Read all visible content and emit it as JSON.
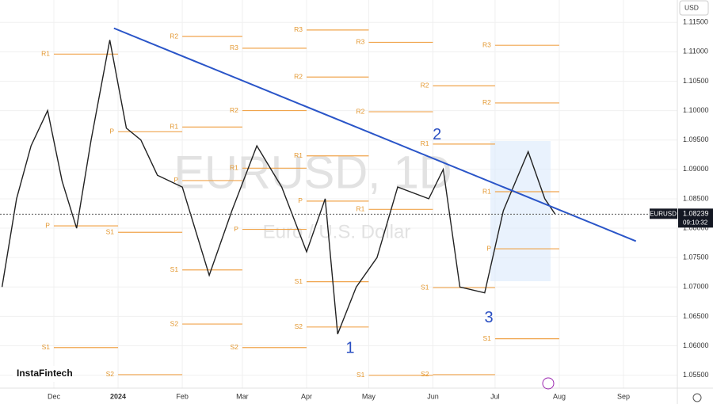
{
  "chart_data": {
    "type": "line",
    "symbol": "EURUSD",
    "watermark": "EURUSD, 1D",
    "subtitle": "Euro / U.S. Dollar",
    "currency": "USD",
    "brand": "InstaFintech",
    "last": 1.08239,
    "countdown": "09:10:32",
    "color": "#222222",
    "xlim": [
      "2023-11-05",
      "2024-09-27"
    ],
    "ylim": [
      1.0528,
      1.1188
    ],
    "xticks": [
      {
        "value": "2023-12-01",
        "label": "Dec"
      },
      {
        "value": "2024-01-01",
        "label": "2024"
      },
      {
        "value": "2024-02-01",
        "label": "Feb"
      },
      {
        "value": "2024-03-01",
        "label": "Mar"
      },
      {
        "value": "2024-04-01",
        "label": "Apr"
      },
      {
        "value": "2024-05-01",
        "label": "May"
      },
      {
        "value": "2024-06-01",
        "label": "Jun"
      },
      {
        "value": "2024-07-01",
        "label": "Jul"
      },
      {
        "value": "2024-08-01",
        "label": "Aug"
      },
      {
        "value": "2024-09-01",
        "label": "Sep"
      }
    ],
    "yticks": [
      {
        "value": 1.055,
        "label": "1.05500"
      },
      {
        "value": 1.06,
        "label": "1.06000"
      },
      {
        "value": 1.065,
        "label": "1.06500"
      },
      {
        "value": 1.07,
        "label": "1.07000"
      },
      {
        "value": 1.075,
        "label": "1.07500"
      },
      {
        "value": 1.08,
        "label": "1.08000"
      },
      {
        "value": 1.085,
        "label": "1.08500"
      },
      {
        "value": 1.09,
        "label": "1.09000"
      },
      {
        "value": 1.095,
        "label": "1.09500"
      },
      {
        "value": 1.1,
        "label": "1.10000"
      },
      {
        "value": 1.105,
        "label": "1.10500"
      },
      {
        "value": 1.11,
        "label": "1.11000"
      },
      {
        "value": 1.115,
        "label": "1.11500"
      }
    ],
    "grid": true,
    "x": [
      "2023-11-06",
      "2023-11-13",
      "2023-11-20",
      "2023-11-28",
      "2023-12-05",
      "2023-12-12",
      "2023-12-19",
      "2023-12-28",
      "2024-01-05",
      "2024-01-12",
      "2024-01-20",
      "2024-02-01",
      "2024-02-14",
      "2024-02-25",
      "2024-03-08",
      "2024-03-20",
      "2024-04-01",
      "2024-04-10",
      "2024-04-16",
      "2024-04-25",
      "2024-05-05",
      "2024-05-15",
      "2024-05-30",
      "2024-06-06",
      "2024-06-14",
      "2024-06-26",
      "2024-07-05",
      "2024-07-17",
      "2024-07-25",
      "2024-07-30"
    ],
    "values": [
      1.07,
      1.085,
      1.094,
      1.1,
      1.088,
      1.08,
      1.095,
      1.112,
      1.097,
      1.095,
      1.089,
      1.087,
      1.072,
      1.083,
      1.094,
      1.087,
      1.076,
      1.085,
      1.062,
      1.07,
      1.075,
      1.087,
      1.085,
      1.09,
      1.07,
      1.069,
      1.083,
      1.093,
      1.085,
      1.08239
    ],
    "trendline": {
      "color": "#2a55c8",
      "x": [
        "2023-12-30",
        "2024-09-07"
      ],
      "values": [
        1.114,
        1.0778
      ]
    },
    "pivots": [
      {
        "label": "R1",
        "value": 1.1096,
        "start": "2023-12-01",
        "end": "2024-01-01"
      },
      {
        "label": "P",
        "value": 1.0804,
        "start": "2023-12-01",
        "end": "2024-01-01"
      },
      {
        "label": "S1",
        "value": 1.0597,
        "start": "2023-12-01",
        "end": "2024-01-01"
      },
      {
        "label": "P",
        "value": 1.0964,
        "start": "2024-01-01",
        "end": "2024-02-01"
      },
      {
        "label": "S1",
        "value": 1.0793,
        "start": "2024-01-01",
        "end": "2024-02-01"
      },
      {
        "label": "S2",
        "value": 1.0551,
        "start": "2024-01-01",
        "end": "2024-02-01"
      },
      {
        "label": "R2",
        "value": 1.1126,
        "start": "2024-02-01",
        "end": "2024-03-01"
      },
      {
        "label": "R1",
        "value": 1.0972,
        "start": "2024-02-01",
        "end": "2024-03-01"
      },
      {
        "label": "P",
        "value": 1.0881,
        "start": "2024-02-01",
        "end": "2024-03-01"
      },
      {
        "label": "S1",
        "value": 1.0729,
        "start": "2024-02-01",
        "end": "2024-03-01"
      },
      {
        "label": "S2",
        "value": 1.0637,
        "start": "2024-02-01",
        "end": "2024-03-01"
      },
      {
        "label": "R3",
        "value": 1.1106,
        "start": "2024-03-01",
        "end": "2024-04-01"
      },
      {
        "label": "R2",
        "value": 1.1,
        "start": "2024-03-01",
        "end": "2024-04-01"
      },
      {
        "label": "R1",
        "value": 1.0902,
        "start": "2024-03-01",
        "end": "2024-04-01"
      },
      {
        "label": "P",
        "value": 1.0798,
        "start": "2024-03-01",
        "end": "2024-04-01"
      },
      {
        "label": "S2",
        "value": 1.0597,
        "start": "2024-03-01",
        "end": "2024-04-01"
      },
      {
        "label": "R3",
        "value": 1.1137,
        "start": "2024-04-01",
        "end": "2024-05-01"
      },
      {
        "label": "R2",
        "value": 1.1057,
        "start": "2024-04-01",
        "end": "2024-05-01"
      },
      {
        "label": "R1",
        "value": 1.0923,
        "start": "2024-04-01",
        "end": "2024-05-01"
      },
      {
        "label": "P",
        "value": 1.0846,
        "start": "2024-04-01",
        "end": "2024-05-01"
      },
      {
        "label": "S1",
        "value": 1.0709,
        "start": "2024-04-01",
        "end": "2024-05-01"
      },
      {
        "label": "S2",
        "value": 1.0632,
        "start": "2024-04-01",
        "end": "2024-05-01"
      },
      {
        "label": "R3",
        "value": 1.1116,
        "start": "2024-05-01",
        "end": "2024-06-01"
      },
      {
        "label": "R2",
        "value": 1.0998,
        "start": "2024-05-01",
        "end": "2024-06-01"
      },
      {
        "label": "R1",
        "value": 1.0832,
        "start": "2024-05-01",
        "end": "2024-06-01"
      },
      {
        "label": "S1",
        "value": 1.055,
        "start": "2024-05-01",
        "end": "2024-06-01"
      },
      {
        "label": "R2",
        "value": 1.1042,
        "start": "2024-06-01",
        "end": "2024-07-01"
      },
      {
        "label": "R1",
        "value": 1.0943,
        "start": "2024-06-01",
        "end": "2024-07-01"
      },
      {
        "label": "S1",
        "value": 1.0699,
        "start": "2024-06-01",
        "end": "2024-07-01"
      },
      {
        "label": "S2",
        "value": 1.0551,
        "start": "2024-06-01",
        "end": "2024-07-01"
      },
      {
        "label": "R3",
        "value": 1.1111,
        "start": "2024-07-01",
        "end": "2024-08-01"
      },
      {
        "label": "R2",
        "value": 1.1013,
        "start": "2024-07-01",
        "end": "2024-08-01"
      },
      {
        "label": "R1",
        "value": 1.0862,
        "start": "2024-07-01",
        "end": "2024-08-01"
      },
      {
        "label": "P",
        "value": 1.0765,
        "start": "2024-07-01",
        "end": "2024-08-01"
      },
      {
        "label": "S1",
        "value": 1.0612,
        "start": "2024-07-01",
        "end": "2024-08-01"
      }
    ],
    "waves": [
      {
        "label": "1",
        "x": "2024-04-22",
        "value": 1.0595
      },
      {
        "label": "2",
        "x": "2024-06-03",
        "value": 1.0958
      },
      {
        "label": "3",
        "x": "2024-06-28",
        "value": 1.0647
      }
    ]
  }
}
